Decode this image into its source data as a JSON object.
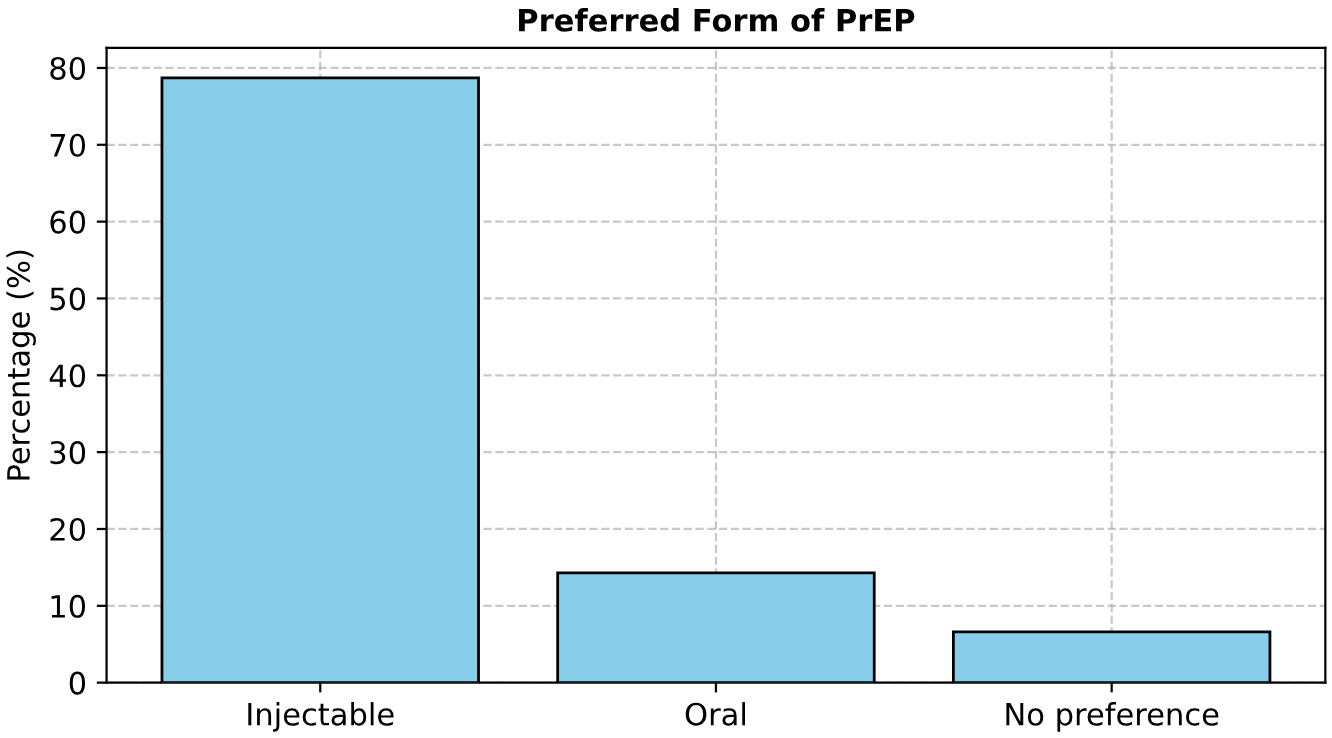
{
  "chart_data": {
    "type": "bar",
    "title": "Preferred Form of PrEP",
    "ylabel": "Percentage (%)",
    "categories": [
      "Injectable",
      "Oral",
      "No preference"
    ],
    "values": [
      78.7,
      14.3,
      6.6
    ],
    "color": "#87ceeb",
    "ylim": [
      0,
      82.6
    ],
    "yticks": [
      0,
      10,
      20,
      30,
      40,
      50,
      60,
      70,
      80
    ],
    "grid": true
  }
}
